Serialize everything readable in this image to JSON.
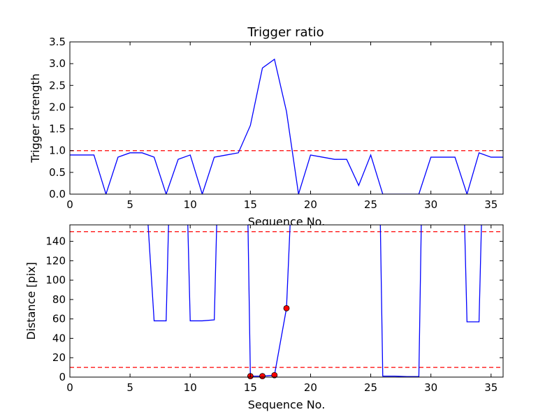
{
  "chart_data": [
    {
      "type": "line",
      "title": "Trigger ratio",
      "xlabel": "Sequence No.",
      "ylabel": "Trigger strength",
      "xlim": [
        0,
        36
      ],
      "ylim": [
        0,
        3.5
      ],
      "xticks": [
        "0",
        "5",
        "10",
        "15",
        "20",
        "25",
        "30",
        "35"
      ],
      "yticks": [
        "0.0",
        "0.5",
        "1.0",
        "1.5",
        "2.0",
        "2.5",
        "3.0",
        "3.5"
      ],
      "grid": false,
      "series": [
        {
          "color": "#0000ff",
          "x": [
            0,
            1,
            2,
            3,
            4,
            5,
            6,
            7,
            8,
            9,
            10,
            11,
            12,
            13,
            14,
            15,
            16,
            17,
            18,
            19,
            20,
            21,
            22,
            23,
            24,
            25,
            26,
            27,
            28,
            29,
            30,
            31,
            32,
            33,
            34,
            35,
            36
          ],
          "values": [
            0.9,
            0.9,
            0.9,
            0.0,
            0.85,
            0.95,
            0.95,
            0.85,
            0.0,
            0.8,
            0.9,
            0.0,
            0.85,
            0.9,
            0.95,
            1.58,
            2.9,
            3.1,
            1.9,
            0.0,
            0.9,
            0.85,
            0.8,
            0.8,
            0.2,
            0.9,
            0.0,
            0.0,
            0.0,
            0.0,
            0.85,
            0.85,
            0.85,
            0.0,
            0.95,
            0.85,
            0.85
          ]
        }
      ],
      "hlines": [
        {
          "y": 1.0,
          "color": "#ff0000",
          "style": "dashed"
        }
      ]
    },
    {
      "type": "line",
      "title": "",
      "xlabel": "Sequence No.",
      "ylabel": "Distance [pix]",
      "xlim": [
        0,
        36
      ],
      "ylim": [
        0,
        157
      ],
      "xticks": [
        "0",
        "5",
        "10",
        "15",
        "20",
        "25",
        "30",
        "35"
      ],
      "yticks": [
        "0",
        "20",
        "40",
        "60",
        "80",
        "100",
        "120",
        "140"
      ],
      "grid": false,
      "series": [
        {
          "color": "#0000ff",
          "segments": [
            {
              "x": [
                6.5,
                7,
                8,
                8.2
              ],
              "values": [
                157,
                58,
                58,
                157
              ]
            },
            {
              "x": [
                9.8,
                10,
                11,
                12,
                12.2
              ],
              "values": [
                157,
                58,
                58,
                59,
                157
              ]
            },
            {
              "x": [
                14.8,
                15,
                16,
                17,
                18,
                18.3
              ],
              "values": [
                157,
                1,
                1,
                2,
                71,
                157
              ]
            },
            {
              "x": [
                25.8,
                26,
                27,
                28,
                29,
                29.2
              ],
              "values": [
                157,
                1,
                1,
                0.5,
                0.5,
                157
              ]
            },
            {
              "x": [
                32.8,
                33,
                34,
                34.2
              ],
              "values": [
                157,
                57,
                57,
                157
              ]
            }
          ]
        }
      ],
      "markers": {
        "color": "#ff0000",
        "x": [
          15,
          16,
          17,
          18
        ],
        "values": [
          1,
          1,
          2,
          71
        ]
      },
      "hlines": [
        {
          "y": 150,
          "color": "#ff0000",
          "style": "dashed"
        },
        {
          "y": 10,
          "color": "#ff0000",
          "style": "dashed"
        }
      ]
    }
  ]
}
